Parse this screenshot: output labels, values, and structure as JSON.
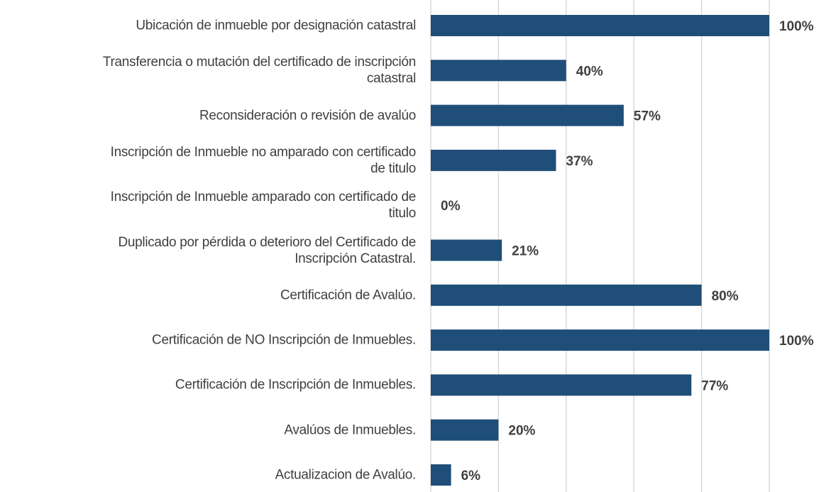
{
  "chart_data": {
    "type": "barh",
    "categories": [
      "Ubicación de inmueble por designación catastral",
      "Transferencia o mutación del certificado de inscripción\ncatastral",
      "Reconsideración o revisión de avalúo",
      "Inscripción  de Inmueble no amparado con certificado\nde titulo",
      "Inscripción  de Inmueble amparado con certificado de\ntitulo",
      "Duplicado por pérdida o deterioro del Certificado de\nInscripción Catastral.",
      "Certificación de Avalúo.",
      "Certificación  de NO Inscripción de Inmuebles.",
      "Certificación  de  Inscripción de Inmuebles.",
      "Avalúos de Inmuebles.",
      "Actualizacion de Avalúo."
    ],
    "values": [
      100,
      40,
      57,
      37,
      0,
      21,
      80,
      100,
      77,
      20,
      6
    ],
    "value_labels": [
      "100%",
      "40%",
      "57%",
      "37%",
      "0%",
      "21%",
      "80%",
      "100%",
      "77%",
      "20%",
      "6%"
    ],
    "color": "#1f4e79",
    "xlim": [
      0,
      100
    ],
    "xticks": [
      0,
      20,
      40,
      60,
      80,
      100
    ],
    "grid": true
  }
}
